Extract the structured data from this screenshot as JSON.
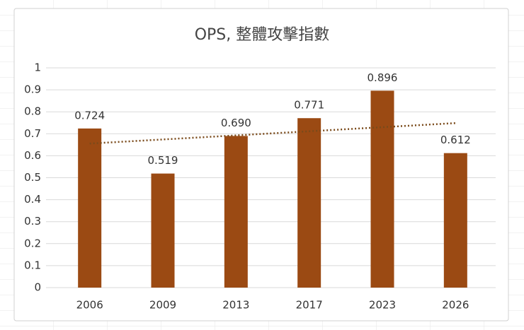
{
  "chart_data": {
    "type": "bar",
    "title": "OPS, 整體攻擊指數",
    "categories": [
      "2006",
      "2009",
      "2013",
      "2017",
      "2023",
      "2026"
    ],
    "values": [
      0.724,
      0.519,
      0.69,
      0.771,
      0.896,
      0.612
    ],
    "value_labels": [
      "0.724",
      "0.519",
      "0.690",
      "0.771",
      "0.896",
      "0.612"
    ],
    "color": "#9b4a13",
    "ylim": [
      0,
      1
    ],
    "yticks": [
      0,
      0.1,
      0.2,
      0.3,
      0.4,
      0.5,
      0.6,
      0.7,
      0.8,
      0.9,
      1
    ],
    "grid": true,
    "trendline": {
      "type": "linear",
      "color": "#7a4a1a"
    }
  }
}
